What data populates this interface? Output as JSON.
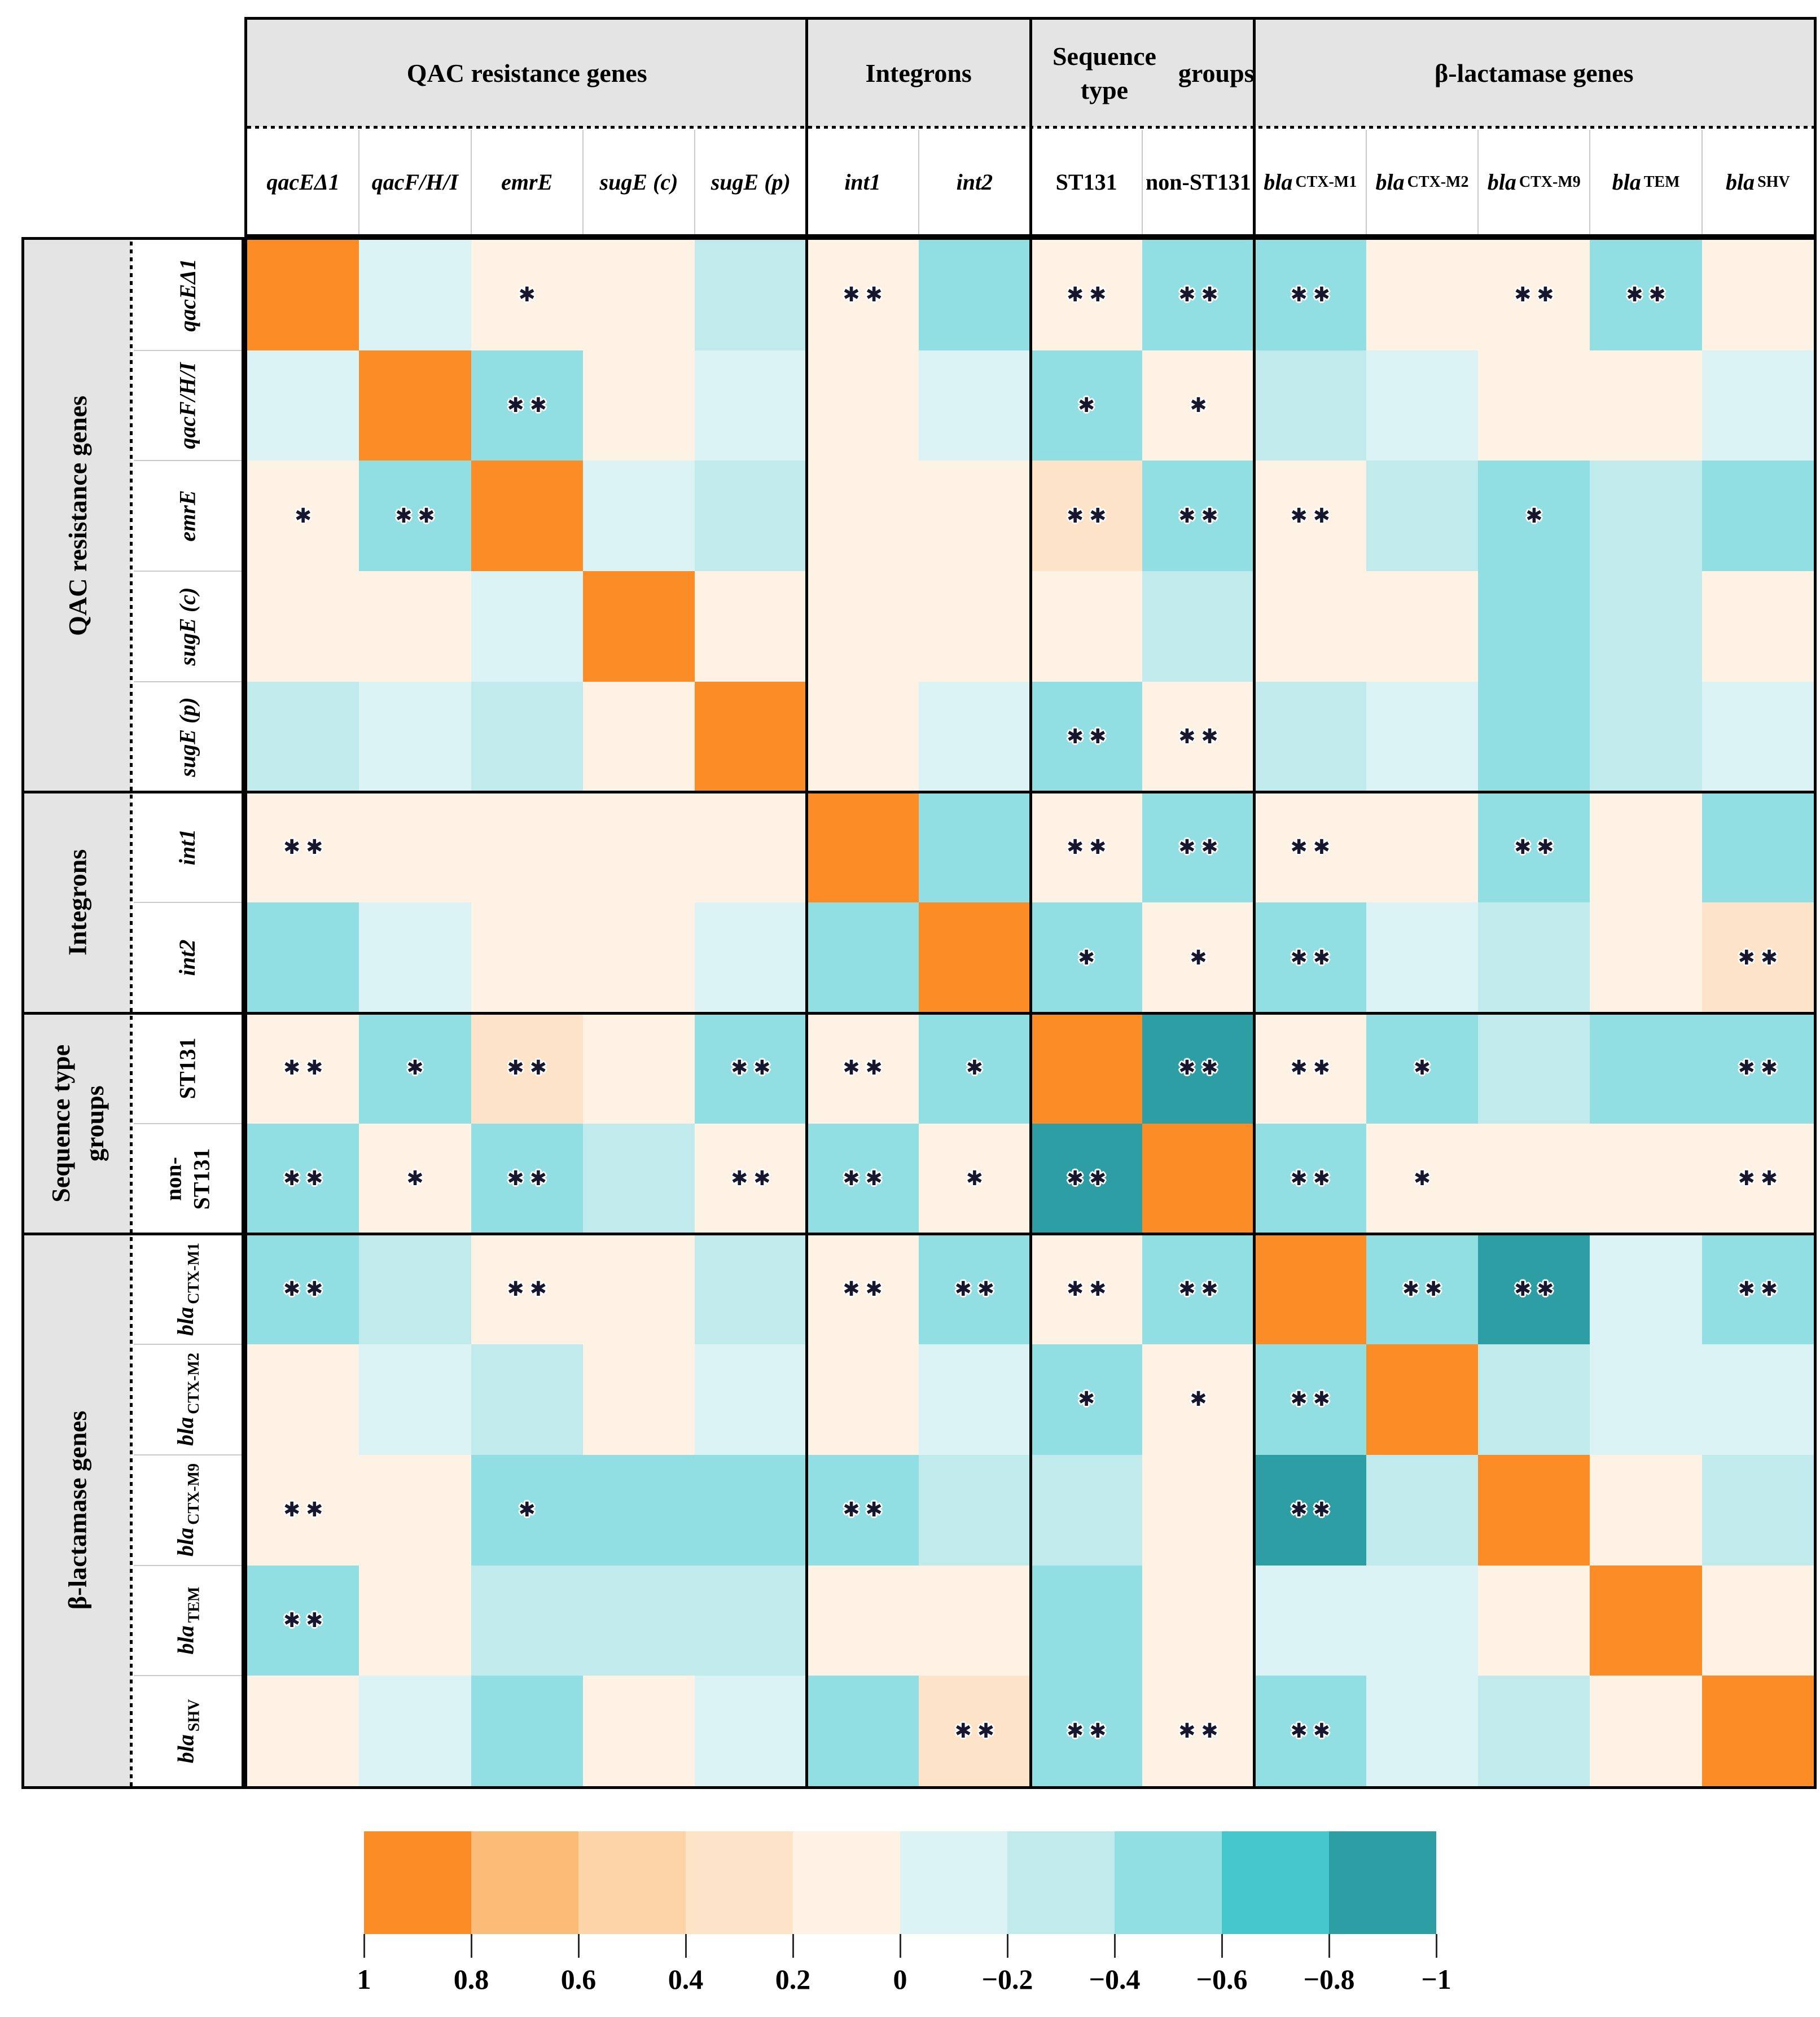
{
  "figure": {
    "type": "correlation-heatmap",
    "background": "#ffffff"
  },
  "header": {
    "column_groups": [
      {
        "label": "QAC resistance genes",
        "cols": 5
      },
      {
        "label": "Integrons",
        "cols": 2
      },
      {
        "label": "Sequence type groups",
        "cols": 2,
        "lines": [
          "Sequence type",
          "groups"
        ]
      },
      {
        "label": "β-lactamase genes",
        "cols": 5
      }
    ]
  },
  "row_groups": [
    {
      "label": "QAC resistance genes",
      "rows": 5
    },
    {
      "label": "Integrons",
      "rows": 2
    },
    {
      "label": "Sequence type groups",
      "rows": 2,
      "lines": [
        "Sequence type",
        "groups"
      ]
    },
    {
      "label": "β-lactamase genes",
      "rows": 5
    }
  ],
  "chart_data": {
    "type": "heatmap",
    "title": "",
    "variables": [
      "qacEΔ1",
      "qacF/H/I",
      "emrE",
      "sugE (c)",
      "sugE (p)",
      "int1",
      "int2",
      "ST131",
      "non-ST131",
      "bla CTX-M1",
      "bla CTX-M2",
      "bla CTX-M9",
      "bla TEM",
      "bla SHV"
    ],
    "columns": [
      {
        "label": "qacEΔ1",
        "italic": true
      },
      {
        "label": "qacF/H/I",
        "italic": true
      },
      {
        "label": "emrE",
        "italic": true
      },
      {
        "label": "sugE (c)",
        "italic": true
      },
      {
        "label": "sugE (p)",
        "italic": true
      },
      {
        "label": "int1",
        "italic": true
      },
      {
        "label": "int2",
        "italic": true
      },
      {
        "label": "ST131",
        "italic": false
      },
      {
        "label": "non-ST131",
        "italic": false,
        "lines": [
          "non-",
          "ST131"
        ]
      },
      {
        "label": "bla CTX-M1",
        "italic": true,
        "main": "bla",
        "sub": "CTX-M1"
      },
      {
        "label": "bla CTX-M2",
        "italic": true,
        "main": "bla",
        "sub": "CTX-M2"
      },
      {
        "label": "bla CTX-M9",
        "italic": true,
        "main": "bla",
        "sub": "CTX-M9"
      },
      {
        "label": "bla TEM",
        "italic": true,
        "main": "bla",
        "sub": "TEM"
      },
      {
        "label": "bla SHV",
        "italic": true,
        "main": "bla",
        "sub": "SHV"
      }
    ],
    "matrix": [
      [
        1.0,
        -0.1,
        0.1,
        0.1,
        -0.3,
        0.1,
        -0.5,
        0.1,
        -0.5,
        -0.5,
        0.1,
        0.1,
        -0.5,
        0.1
      ],
      [
        -0.1,
        1.0,
        -0.5,
        0.1,
        -0.1,
        0.1,
        -0.1,
        -0.5,
        0.1,
        -0.3,
        -0.1,
        0.1,
        0.1,
        -0.1
      ],
      [
        0.1,
        -0.5,
        1.0,
        -0.1,
        -0.3,
        0.1,
        0.1,
        0.3,
        -0.5,
        0.1,
        -0.3,
        -0.5,
        -0.3,
        -0.5
      ],
      [
        0.1,
        0.1,
        -0.1,
        1.0,
        0.1,
        0.1,
        0.1,
        0.1,
        -0.3,
        0.1,
        0.1,
        -0.5,
        -0.3,
        0.1
      ],
      [
        -0.3,
        -0.1,
        -0.3,
        0.1,
        1.0,
        0.1,
        -0.1,
        -0.5,
        0.1,
        -0.3,
        -0.1,
        -0.5,
        -0.3,
        -0.1
      ],
      [
        0.1,
        0.1,
        0.1,
        0.1,
        0.1,
        1.0,
        -0.5,
        0.1,
        -0.5,
        0.1,
        0.1,
        -0.5,
        0.1,
        -0.5
      ],
      [
        -0.5,
        -0.1,
        0.1,
        0.1,
        -0.1,
        -0.5,
        1.0,
        -0.5,
        0.1,
        -0.5,
        -0.1,
        -0.3,
        0.1,
        0.3
      ],
      [
        0.1,
        -0.5,
        0.3,
        0.1,
        -0.5,
        0.1,
        -0.5,
        1.0,
        -0.9,
        0.1,
        -0.5,
        -0.3,
        -0.5,
        -0.5
      ],
      [
        -0.5,
        0.1,
        -0.5,
        -0.3,
        0.1,
        -0.5,
        0.1,
        -0.9,
        1.0,
        -0.5,
        0.1,
        0.1,
        0.1,
        0.1
      ],
      [
        -0.5,
        -0.3,
        0.1,
        0.1,
        -0.3,
        0.1,
        -0.5,
        0.1,
        -0.5,
        1.0,
        -0.5,
        -0.9,
        -0.1,
        -0.5
      ],
      [
        0.1,
        -0.1,
        -0.3,
        0.1,
        -0.1,
        0.1,
        -0.1,
        -0.5,
        0.1,
        -0.5,
        1.0,
        -0.3,
        -0.1,
        -0.1
      ],
      [
        0.1,
        0.1,
        -0.5,
        -0.5,
        -0.5,
        -0.5,
        -0.3,
        -0.3,
        0.1,
        -0.9,
        -0.3,
        1.0,
        0.1,
        -0.3
      ],
      [
        -0.5,
        0.1,
        -0.3,
        -0.3,
        -0.3,
        0.1,
        0.1,
        -0.5,
        0.1,
        -0.1,
        -0.1,
        0.1,
        1.0,
        0.1
      ],
      [
        0.1,
        -0.1,
        -0.5,
        0.1,
        -0.1,
        -0.5,
        0.3,
        -0.5,
        0.1,
        -0.5,
        -0.1,
        -0.3,
        0.1,
        1.0
      ]
    ],
    "significance": [
      [
        "",
        "",
        "*",
        "",
        "",
        "**",
        "",
        "**",
        "**",
        "**",
        "",
        "**",
        "**",
        ""
      ],
      [
        "",
        "",
        "**",
        "",
        "",
        "",
        "",
        "*",
        "*",
        "",
        "",
        "",
        "",
        ""
      ],
      [
        "*",
        "**",
        "",
        "",
        "",
        "",
        "",
        "**",
        "**",
        "**",
        "",
        "*",
        "",
        ""
      ],
      [
        "",
        "",
        "",
        "",
        "",
        "",
        "",
        "",
        "",
        "",
        "",
        "",
        "",
        ""
      ],
      [
        "",
        "",
        "",
        "",
        "",
        "",
        "",
        "**",
        "**",
        "",
        "",
        "",
        "",
        ""
      ],
      [
        "**",
        "",
        "",
        "",
        "",
        "",
        "",
        "**",
        "**",
        "**",
        "",
        "**",
        "",
        ""
      ],
      [
        "",
        "",
        "",
        "",
        "",
        "",
        "",
        "*",
        "*",
        "**",
        "",
        "",
        "",
        "**"
      ],
      [
        "**",
        "*",
        "**",
        "",
        "**",
        "**",
        "*",
        "",
        "**",
        "**",
        "*",
        "",
        "",
        "**"
      ],
      [
        "**",
        "*",
        "**",
        "",
        "**",
        "**",
        "*",
        "**",
        "",
        "**",
        "*",
        "",
        "",
        "**"
      ],
      [
        "**",
        "",
        "**",
        "",
        "",
        "**",
        "**",
        "**",
        "**",
        "",
        "**",
        "**",
        "",
        "**"
      ],
      [
        "",
        "",
        "",
        "",
        "",
        "",
        "",
        "*",
        "*",
        "**",
        "",
        "",
        "",
        ""
      ],
      [
        "**",
        "",
        "*",
        "",
        "",
        "**",
        "",
        "",
        "",
        "**",
        "",
        "",
        "",
        ""
      ],
      [
        "**",
        "",
        "",
        "",
        "",
        "",
        "",
        "",
        "",
        "",
        "",
        "",
        "",
        ""
      ],
      [
        "",
        "",
        "",
        "",
        "",
        "",
        "**",
        "**",
        "**",
        "**",
        "",
        "",
        "",
        ""
      ]
    ],
    "legend": {
      "bin_edges": [
        1,
        0.8,
        0.6,
        0.4,
        0.2,
        0,
        -0.2,
        -0.4,
        -0.6,
        -0.8,
        -1
      ],
      "tick_labels": [
        "1",
        "0.8",
        "0.6",
        "0.4",
        "0.2",
        "0",
        "−0.2",
        "−0.4",
        "−0.6",
        "−0.8",
        "−1"
      ],
      "colors": [
        "#FB8C26",
        "#FBBC77",
        "#FCD4A7",
        "#FDE3C7",
        "#FEF2E5",
        "#DCF3F5",
        "#C0EAEC",
        "#92DFE3",
        "#46C7CE",
        "#2C9EA4"
      ],
      "position": "bottom"
    },
    "significance_marks": {
      "single": "*",
      "double": "**"
    }
  },
  "styles": {
    "header_bg": "#E4E4E4",
    "grid_thick": "#000000",
    "grid_thin": "#C9C9C9",
    "mark_color": "#16162E",
    "diagonal_color": "#FB8C26"
  }
}
